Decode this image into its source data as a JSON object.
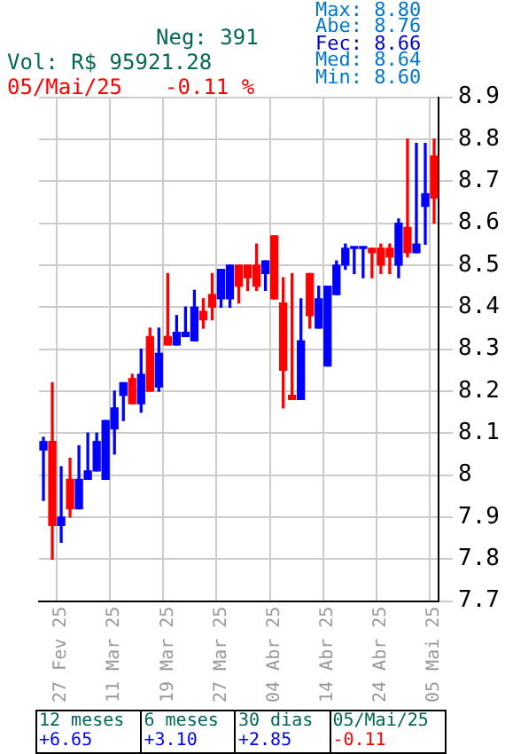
{
  "chart_data": {
    "type": "candlestick",
    "categories": [
      null,
      null,
      "27 Fev 25",
      null,
      null,
      null,
      null,
      null,
      "11 Mar 25",
      null,
      null,
      null,
      null,
      null,
      "19 Mar 25",
      null,
      null,
      null,
      null,
      null,
      "27 Mar 25",
      null,
      null,
      null,
      null,
      null,
      "04 Abr 25",
      null,
      null,
      null,
      null,
      null,
      "14 Abr 25",
      null,
      null,
      null,
      null,
      null,
      "24 Abr 25",
      null,
      null,
      null,
      null,
      null,
      "05 Mai 25"
    ],
    "ohlc": [
      [
        8.06,
        8.09,
        7.94,
        8.08
      ],
      [
        8.08,
        8.22,
        7.8,
        7.88
      ],
      [
        7.88,
        8.02,
        7.84,
        7.9
      ],
      [
        7.99,
        8.04,
        7.9,
        7.92
      ],
      [
        7.92,
        8.07,
        7.92,
        7.99
      ],
      [
        7.99,
        8.1,
        7.99,
        8.01
      ],
      [
        8.01,
        8.1,
        8.01,
        8.08
      ],
      [
        7.99,
        8.13,
        7.99,
        8.13
      ],
      [
        8.11,
        8.2,
        8.05,
        8.16
      ],
      [
        8.19,
        8.22,
        8.13,
        8.22
      ],
      [
        8.23,
        8.24,
        8.17,
        8.17
      ],
      [
        8.17,
        8.3,
        8.15,
        8.24
      ],
      [
        8.33,
        8.35,
        8.2,
        8.2
      ],
      [
        8.21,
        8.35,
        8.2,
        8.29
      ],
      [
        8.33,
        8.48,
        8.31,
        8.31
      ],
      [
        8.31,
        8.38,
        8.31,
        8.34
      ],
      [
        8.33,
        8.4,
        8.33,
        8.34
      ],
      [
        8.32,
        8.44,
        8.32,
        8.4
      ],
      [
        8.39,
        8.42,
        8.35,
        8.37
      ],
      [
        8.43,
        8.48,
        8.37,
        8.4
      ],
      [
        8.42,
        8.49,
        8.4,
        8.49
      ],
      [
        8.42,
        8.5,
        8.4,
        8.5
      ],
      [
        8.5,
        8.5,
        8.41,
        8.45
      ],
      [
        8.5,
        8.5,
        8.44,
        8.47
      ],
      [
        8.5,
        8.55,
        8.44,
        8.45
      ],
      [
        8.48,
        8.51,
        8.44,
        8.51
      ],
      [
        8.57,
        8.57,
        8.42,
        8.42
      ],
      [
        8.41,
        8.47,
        8.16,
        8.25
      ],
      [
        8.19,
        8.48,
        8.18,
        8.18
      ],
      [
        8.18,
        8.42,
        8.18,
        8.32
      ],
      [
        8.48,
        8.48,
        8.35,
        8.38
      ],
      [
        8.35,
        8.45,
        8.35,
        8.42
      ],
      [
        8.26,
        8.45,
        8.26,
        8.45
      ],
      [
        8.43,
        8.51,
        8.43,
        8.5
      ],
      [
        8.5,
        8.55,
        8.49,
        8.54
      ],
      [
        8.54,
        8.54,
        8.48,
        8.54
      ],
      [
        8.54,
        8.54,
        8.47,
        8.54
      ],
      [
        8.54,
        8.54,
        8.47,
        8.53
      ],
      [
        8.54,
        8.55,
        8.48,
        8.5
      ],
      [
        8.54,
        8.55,
        8.48,
        8.52
      ],
      [
        8.5,
        8.61,
        8.47,
        8.6
      ],
      [
        8.59,
        8.8,
        8.52,
        8.53
      ],
      [
        8.53,
        8.79,
        8.53,
        8.55
      ],
      [
        8.64,
        8.79,
        8.55,
        8.67
      ],
      [
        8.76,
        8.8,
        8.6,
        8.66
      ]
    ],
    "colors": [
      "#0000ff",
      "#ff0000",
      "#0000ff",
      "#ff0000",
      "#0000ff",
      "#0000ff",
      "#0000ff",
      "#0000ff",
      "#0000ff",
      "#0000ff",
      "#ff0000",
      "#0000ff",
      "#ff0000",
      "#0000ff",
      "#ff0000",
      "#0000ff",
      "#0000ff",
      "#0000ff",
      "#ff0000",
      "#ff0000",
      "#0000ff",
      "#0000ff",
      "#ff0000",
      "#ff0000",
      "#ff0000",
      "#0000ff",
      "#ff0000",
      "#ff0000",
      "#ff0000",
      "#0000ff",
      "#ff0000",
      "#0000ff",
      "#0000ff",
      "#0000ff",
      "#0000ff",
      "#0000ff",
      "#0000ff",
      "#ff0000",
      "#ff0000",
      "#ff0000",
      "#0000ff",
      "#ff0000",
      "#0000ff",
      "#0000ff",
      "#ff0000"
    ],
    "ylim": [
      7.7,
      8.9
    ],
    "yticks": [
      7.7,
      7.8,
      7.9,
      8,
      8.1,
      8.2,
      8.3,
      8.4,
      8.5,
      8.6,
      8.7,
      8.8,
      8.9
    ],
    "grid": true,
    "annotations": [
      "Neg: 391",
      "Vol: R$ 95921.28",
      "05/Mai/25",
      "-0.11 %",
      "Max: 8.80",
      "Abe: 8.76",
      "Fec: 8.66",
      "Med: 8.64",
      "Min: 8.60",
      "12 meses",
      "+6.65",
      "6 meses",
      "+3.10",
      "30 dias",
      "+2.85",
      "05/Mai/25",
      "-0.11"
    ]
  }
}
